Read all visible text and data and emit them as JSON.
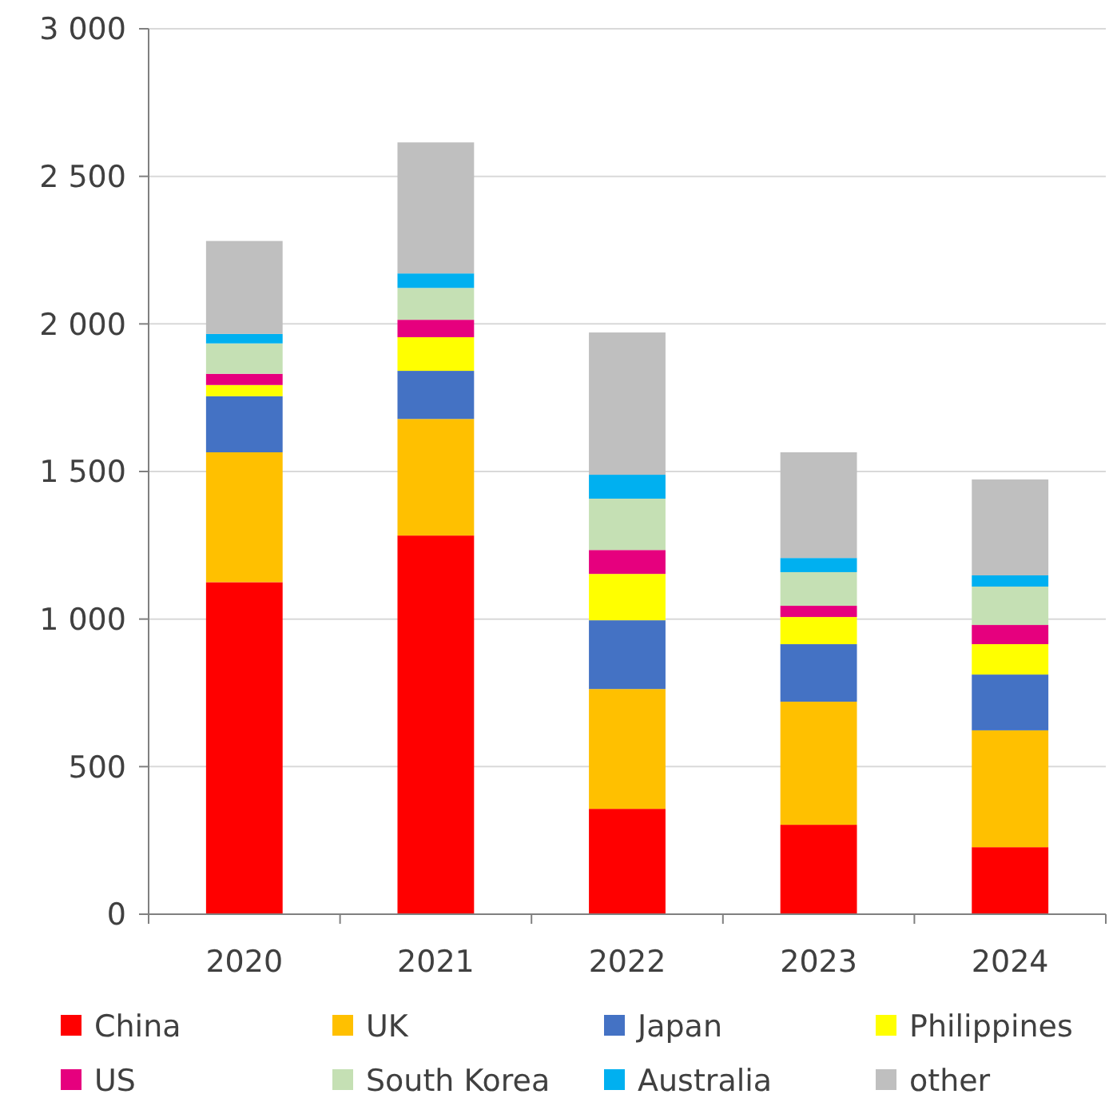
{
  "chart_data": {
    "type": "bar",
    "stacked": true,
    "categories": [
      "2020",
      "2021",
      "2022",
      "2023",
      "2024"
    ],
    "series": [
      {
        "name": "China",
        "color": "#ff0000",
        "values": [
          1125,
          1283,
          357,
          303,
          227
        ]
      },
      {
        "name": "UK",
        "color": "#ffc000",
        "values": [
          440,
          395,
          406,
          417,
          396
        ]
      },
      {
        "name": "Japan",
        "color": "#4472c4",
        "values": [
          190,
          163,
          233,
          195,
          189
        ]
      },
      {
        "name": "Philippines",
        "color": "#ffff00",
        "values": [
          38,
          114,
          157,
          92,
          103
        ]
      },
      {
        "name": "US",
        "color": "#e6007e",
        "values": [
          38,
          59,
          81,
          38,
          65
        ]
      },
      {
        "name": "South Korea",
        "color": "#c5e0b4",
        "values": [
          103,
          108,
          174,
          114,
          130
        ]
      },
      {
        "name": "Australia",
        "color": "#00b0f0",
        "values": [
          32,
          49,
          81,
          48,
          38
        ]
      },
      {
        "name": "other",
        "color": "#bfbfbf",
        "values": [
          315,
          444,
          482,
          358,
          325
        ]
      }
    ],
    "ylim": [
      0,
      3000
    ],
    "yticks": [
      0,
      {
        "value": 500,
        "label": "500"
      },
      {
        "value": 1000,
        "label": "1 000"
      },
      {
        "value": 1500,
        "label": "1 500"
      },
      {
        "value": 2000,
        "label": "2 000"
      },
      {
        "value": 2500,
        "label": "2 500"
      },
      {
        "value": 3000,
        "label": "3 000"
      }
    ],
    "grid": "y",
    "legend": "bottom"
  }
}
